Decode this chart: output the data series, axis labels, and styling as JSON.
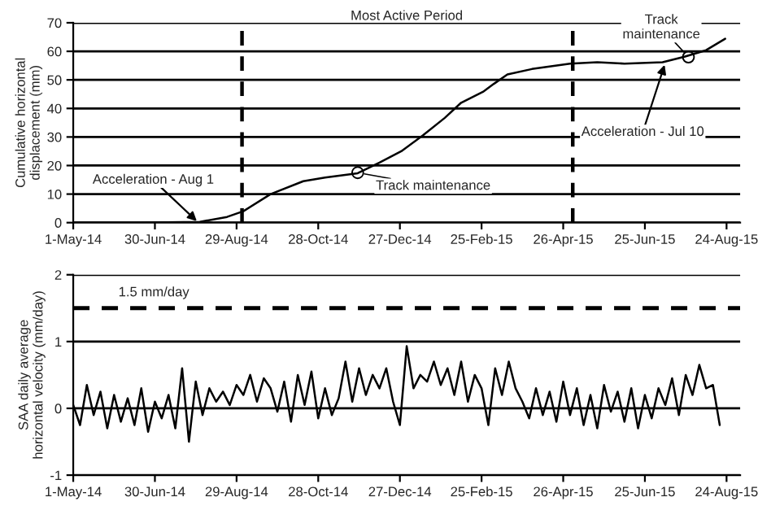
{
  "chart_data": [
    {
      "type": "line",
      "ylabel": "Cumulative horizontal\ndisplacement (mm)",
      "series": [
        {
          "color": "#000000",
          "x": [
            "2014-05-01",
            "2014-06-15",
            "2014-08-02",
            "2014-08-22",
            "2014-09-03",
            "2014-09-23",
            "2014-10-17",
            "2014-11-02",
            "2014-11-26",
            "2014-12-12",
            "2014-12-28",
            "2015-01-13",
            "2015-01-29",
            "2015-02-10",
            "2015-02-26",
            "2015-03-06",
            "2015-03-16",
            "2015-04-03",
            "2015-05-01",
            "2015-05-21",
            "2015-06-10",
            "2015-07-08",
            "2015-07-24",
            "2015-08-09",
            "2015-08-23"
          ],
          "values": [
            0,
            0,
            0.3,
            2,
            4,
            10,
            14.5,
            15.8,
            17.3,
            21,
            25,
            30.6,
            36.7,
            42,
            45.8,
            48.6,
            51.9,
            53.8,
            55.7,
            56.2,
            55.7,
            56.2,
            58.1,
            60.4,
            64.4
          ]
        }
      ],
      "xlim": [
        "2014-05-01",
        "2015-09-03"
      ],
      "xticks": [
        {
          "value": "2014-05-01",
          "label": "1-May-14"
        },
        {
          "value": "2014-06-30",
          "label": "30-Jun-14"
        },
        {
          "value": "2014-08-29",
          "label": "29-Aug-14"
        },
        {
          "value": "2014-10-28",
          "label": "28-Oct-14"
        },
        {
          "value": "2014-12-27",
          "label": "27-Dec-14"
        },
        {
          "value": "2015-02-25",
          "label": "25-Feb-15"
        },
        {
          "value": "2015-04-26",
          "label": "26-Apr-15"
        },
        {
          "value": "2015-06-25",
          "label": "25-Jun-15"
        },
        {
          "value": "2015-08-24",
          "label": "24-Aug-15"
        }
      ],
      "ylim": [
        0,
        70
      ],
      "yticks": [
        0,
        10,
        20,
        30,
        40,
        50,
        60,
        70
      ],
      "grid": "y",
      "legend": false,
      "line_style": "solid",
      "marker": "none",
      "ref_lines": [
        {
          "axis": "x",
          "value": "2014-09-02",
          "line_style": "dashed",
          "color": "#000000"
        },
        {
          "axis": "x",
          "value": "2015-05-03",
          "line_style": "dashed",
          "color": "#000000"
        }
      ],
      "annotations": [
        "Most Active Period",
        {
          "text": "Acceleration - Aug 1",
          "x": "2014-08-01",
          "y": 0
        },
        {
          "text": "Track maintenance",
          "x": "2014-11-26",
          "y": 17.5
        },
        {
          "text": "Track\nmaintenance",
          "x": "2015-07-27",
          "y": 58
        },
        {
          "text": "Acceleration - Jul 10",
          "x": "2015-07-10",
          "y": 56
        }
      ]
    },
    {
      "type": "line",
      "ylabel": "SAA daily average\nhorizontal velocity (mm/day)",
      "series": [
        {
          "color": "#000000",
          "x": [
            "2014-05-01",
            "2014-05-06",
            "2014-05-11",
            "2014-05-16",
            "2014-05-21",
            "2014-05-26",
            "2014-05-31",
            "2014-06-05",
            "2014-06-10",
            "2014-06-15",
            "2014-06-20",
            "2014-06-25",
            "2014-06-30",
            "2014-07-05",
            "2014-07-10",
            "2014-07-15",
            "2014-07-20",
            "2014-07-25",
            "2014-07-30",
            "2014-08-04",
            "2014-08-09",
            "2014-08-14",
            "2014-08-19",
            "2014-08-24",
            "2014-08-29",
            "2014-09-03",
            "2014-09-08",
            "2014-09-13",
            "2014-09-18",
            "2014-09-23",
            "2014-09-28",
            "2014-10-03",
            "2014-10-08",
            "2014-10-13",
            "2014-10-18",
            "2014-10-23",
            "2014-10-28",
            "2014-11-02",
            "2014-11-07",
            "2014-11-12",
            "2014-11-17",
            "2014-11-22",
            "2014-11-27",
            "2014-12-02",
            "2014-12-07",
            "2014-12-12",
            "2014-12-17",
            "2014-12-22",
            "2014-12-27",
            "2015-01-01",
            "2015-01-06",
            "2015-01-11",
            "2015-01-16",
            "2015-01-21",
            "2015-01-26",
            "2015-01-31",
            "2015-02-05",
            "2015-02-10",
            "2015-02-15",
            "2015-02-20",
            "2015-02-25",
            "2015-03-02",
            "2015-03-07",
            "2015-03-12",
            "2015-03-17",
            "2015-03-22",
            "2015-03-27",
            "2015-04-01",
            "2015-04-06",
            "2015-04-11",
            "2015-04-16",
            "2015-04-21",
            "2015-04-26",
            "2015-05-01",
            "2015-05-06",
            "2015-05-11",
            "2015-05-16",
            "2015-05-21",
            "2015-05-26",
            "2015-05-31",
            "2015-06-05",
            "2015-06-10",
            "2015-06-15",
            "2015-06-20",
            "2015-06-25",
            "2015-06-30",
            "2015-07-05",
            "2015-07-10",
            "2015-07-15",
            "2015-07-20",
            "2015-07-25",
            "2015-07-30",
            "2015-08-04",
            "2015-08-09",
            "2015-08-14",
            "2015-08-19"
          ],
          "values": [
            0.05,
            -0.25,
            0.35,
            -0.1,
            0.25,
            -0.3,
            0.2,
            -0.2,
            0.15,
            -0.25,
            0.3,
            -0.35,
            0.1,
            -0.15,
            0.2,
            -0.3,
            0.6,
            -0.5,
            0.4,
            -0.1,
            0.3,
            0.1,
            0.25,
            0.05,
            0.35,
            0.2,
            0.5,
            0.1,
            0.45,
            0.3,
            -0.05,
            0.4,
            -0.2,
            0.5,
            0.05,
            0.55,
            -0.15,
            0.3,
            -0.1,
            0.15,
            0.7,
            0.1,
            0.6,
            0.2,
            0.5,
            0.3,
            0.6,
            0.1,
            -0.25,
            0.93,
            0.3,
            0.5,
            0.4,
            0.7,
            0.35,
            0.6,
            0.2,
            0.7,
            0.1,
            0.5,
            0.3,
            -0.25,
            0.6,
            0.2,
            0.7,
            0.3,
            0.1,
            -0.15,
            0.3,
            -0.1,
            0.25,
            -0.2,
            0.4,
            -0.1,
            0.3,
            -0.25,
            0.2,
            -0.3,
            0.35,
            -0.05,
            0.25,
            -0.2,
            0.3,
            -0.3,
            0.2,
            -0.15,
            0.3,
            0.05,
            0.45,
            -0.1,
            0.5,
            0.2,
            0.65,
            0.3,
            0.35,
            -0.25
          ]
        }
      ],
      "xlim": [
        "2014-05-01",
        "2015-09-03"
      ],
      "xticks": [
        {
          "value": "2014-05-01",
          "label": "1-May-14"
        },
        {
          "value": "2014-06-30",
          "label": "30-Jun-14"
        },
        {
          "value": "2014-08-29",
          "label": "29-Aug-14"
        },
        {
          "value": "2014-10-28",
          "label": "28-Oct-14"
        },
        {
          "value": "2014-12-27",
          "label": "27-Dec-14"
        },
        {
          "value": "2015-02-25",
          "label": "25-Feb-15"
        },
        {
          "value": "2015-04-26",
          "label": "26-Apr-15"
        },
        {
          "value": "2015-06-25",
          "label": "25-Jun-15"
        },
        {
          "value": "2015-08-24",
          "label": "24-Aug-15"
        }
      ],
      "ylim": [
        -1,
        2
      ],
      "yticks": [
        -1,
        0,
        1,
        2
      ],
      "grid": "y",
      "legend": false,
      "line_style": "solid",
      "marker": "none",
      "ref_lines": [
        {
          "axis": "y",
          "value": 1.5,
          "label": "1.5 mm/day",
          "line_style": "dashed",
          "color": "#000000"
        }
      ]
    }
  ]
}
